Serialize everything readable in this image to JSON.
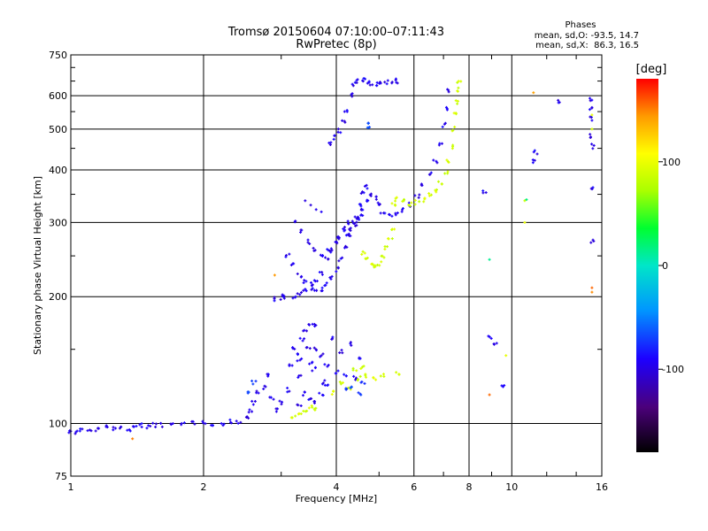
{
  "chart_data": {
    "type": "scatter",
    "title": "Tromsø 20150604 07:10:00–07:11:43",
    "subtitle": "RwPretec (8p)",
    "xlabel": "Frequency [MHz]",
    "ylabel": "Stationary phase Virtual Height [km]",
    "x_scale": "log",
    "y_scale": "log",
    "xlim": [
      1,
      16
    ],
    "ylim": [
      75,
      750
    ],
    "x_ticks": [
      1,
      2,
      4,
      6,
      8,
      10,
      16
    ],
    "x_tick_labels": [
      "1",
      "2",
      "4",
      "6",
      "8",
      "10",
      "16"
    ],
    "y_ticks": [
      75,
      100,
      200,
      300,
      400,
      500,
      600,
      750
    ],
    "y_tick_labels": [
      "75",
      "100",
      "200",
      "300",
      "400",
      "500",
      "600",
      "750"
    ],
    "grid": true,
    "phase_stats": {
      "header": "Phases",
      "o_line": "mean, sd,O: -93.5, 14.7",
      "x_line": "mean, sd,X:  86.3, 16.5"
    },
    "colorbar": {
      "label": "[deg]",
      "range": [
        -180,
        180
      ],
      "ticks": [
        -100,
        0,
        100
      ],
      "tick_labels": [
        "-100",
        "0",
        "100"
      ]
    },
    "traces": [
      {
        "phase": -95,
        "points": [
          [
            1.0,
            96
          ],
          [
            1.03,
            95
          ],
          [
            1.06,
            97
          ],
          [
            1.1,
            96
          ],
          [
            1.15,
            97
          ],
          [
            1.2,
            98
          ],
          [
            1.25,
            97
          ],
          [
            1.3,
            98
          ],
          [
            1.35,
            97
          ],
          [
            1.4,
            98
          ],
          [
            1.45,
            99
          ],
          [
            1.5,
            98
          ],
          [
            1.55,
            99
          ],
          [
            1.6,
            99
          ],
          [
            1.7,
            99
          ],
          [
            1.8,
            100
          ],
          [
            1.9,
            100
          ],
          [
            2.0,
            100
          ],
          [
            2.1,
            100
          ],
          [
            2.2,
            100
          ],
          [
            2.3,
            101
          ],
          [
            2.4,
            101
          ],
          [
            2.5,
            103
          ],
          [
            2.55,
            107
          ],
          [
            2.6,
            112
          ],
          [
            2.65,
            118
          ]
        ]
      },
      {
        "phase": -95,
        "points": [
          [
            3.1,
            250
          ],
          [
            3.2,
            238
          ],
          [
            3.3,
            225
          ],
          [
            3.4,
            218
          ],
          [
            3.5,
            214
          ],
          [
            3.6,
            218
          ],
          [
            3.7,
            228
          ],
          [
            3.8,
            245
          ],
          [
            3.9,
            258
          ],
          [
            4.0,
            268
          ],
          [
            4.1,
            275
          ],
          [
            4.2,
            283
          ],
          [
            4.3,
            290
          ],
          [
            4.4,
            296
          ],
          [
            4.5,
            305
          ],
          [
            4.6,
            320
          ],
          [
            4.7,
            337
          ],
          [
            4.8,
            350
          ],
          [
            4.9,
            342
          ],
          [
            5.0,
            330
          ],
          [
            5.1,
            318
          ],
          [
            5.3,
            312
          ],
          [
            5.5,
            315
          ],
          [
            5.7,
            322
          ],
          [
            5.9,
            330
          ],
          [
            6.1,
            345
          ],
          [
            6.3,
            368
          ],
          [
            6.5,
            392
          ],
          [
            6.7,
            420
          ],
          [
            6.9,
            460
          ],
          [
            7.0,
            510
          ],
          [
            7.1,
            560
          ],
          [
            7.15,
            620
          ]
        ]
      },
      {
        "phase": -95,
        "points": [
          [
            3.25,
            300
          ],
          [
            3.35,
            285
          ],
          [
            3.45,
            270
          ],
          [
            3.55,
            258
          ],
          [
            3.7,
            252
          ],
          [
            3.85,
            260
          ],
          [
            4.0,
            275
          ],
          [
            4.15,
            290
          ],
          [
            4.3,
            300
          ],
          [
            4.45,
            308
          ],
          [
            4.6,
            310
          ]
        ]
      },
      {
        "phase": -95,
        "points": [
          [
            3.2,
            198
          ],
          [
            3.3,
            203
          ],
          [
            3.4,
            208
          ],
          [
            3.5,
            210
          ],
          [
            3.6,
            206
          ],
          [
            3.7,
            208
          ],
          [
            3.8,
            214
          ],
          [
            3.9,
            222
          ],
          [
            4.0,
            232
          ],
          [
            4.1,
            245
          ],
          [
            4.2,
            262
          ],
          [
            4.3,
            280
          ],
          [
            4.4,
            300
          ],
          [
            4.5,
            328
          ],
          [
            4.6,
            355
          ],
          [
            4.7,
            365
          ]
        ]
      },
      {
        "phase": -95,
        "points": [
          [
            3.4,
            338
          ],
          [
            3.5,
            330
          ],
          [
            3.6,
            322
          ],
          [
            3.7,
            318
          ]
        ]
      },
      {
        "phase": -95,
        "points": [
          [
            3.85,
            460
          ],
          [
            3.95,
            478
          ],
          [
            4.05,
            495
          ],
          [
            4.15,
            520
          ],
          [
            4.2,
            555
          ],
          [
            4.3,
            600
          ],
          [
            4.4,
            640
          ],
          [
            4.5,
            650
          ],
          [
            4.6,
            655
          ],
          [
            4.7,
            650
          ],
          [
            4.8,
            640
          ],
          [
            4.9,
            638
          ],
          [
            5.0,
            642
          ],
          [
            5.2,
            645
          ],
          [
            5.4,
            648
          ],
          [
            5.5,
            650
          ]
        ]
      },
      {
        "phase": -95,
        "points": [
          [
            3.1,
            120
          ],
          [
            3.15,
            138
          ],
          [
            3.25,
            145
          ],
          [
            3.3,
            130
          ],
          [
            3.35,
            158
          ],
          [
            3.4,
            165
          ],
          [
            3.45,
            150
          ],
          [
            3.5,
            140
          ],
          [
            3.55,
            135
          ],
          [
            3.6,
            150
          ],
          [
            3.7,
            145
          ],
          [
            3.75,
            125
          ],
          [
            3.8,
            138
          ],
          [
            3.9,
            160
          ],
          [
            4.0,
            132
          ],
          [
            4.1,
            148
          ],
          [
            4.2,
            130
          ],
          [
            4.3,
            155
          ],
          [
            4.4,
            128
          ],
          [
            4.5,
            142
          ],
          [
            3.3,
            110
          ],
          [
            3.4,
            118
          ],
          [
            3.5,
            115
          ],
          [
            3.6,
            112
          ],
          [
            3.7,
            118
          ],
          [
            3.8,
            122
          ],
          [
            3.5,
            170
          ],
          [
            3.6,
            172
          ],
          [
            3.2,
            150
          ],
          [
            3.3,
            142
          ]
        ]
      },
      {
        "phase": -95,
        "points": [
          [
            2.9,
            197
          ],
          [
            3.0,
            199
          ],
          [
            3.05,
            200
          ],
          [
            2.75,
            122
          ],
          [
            2.8,
            130
          ],
          [
            2.85,
            115
          ],
          [
            2.95,
            108
          ],
          [
            3.0,
            112
          ]
        ]
      },
      {
        "phase": 90,
        "points": [
          [
            4.6,
            255
          ],
          [
            4.7,
            245
          ],
          [
            4.8,
            238
          ],
          [
            4.9,
            235
          ],
          [
            5.0,
            240
          ],
          [
            5.1,
            250
          ],
          [
            5.2,
            262
          ],
          [
            5.3,
            275
          ],
          [
            5.4,
            290
          ]
        ]
      },
      {
        "phase": 90,
        "points": [
          [
            5.4,
            330
          ],
          [
            5.5,
            340
          ],
          [
            5.7,
            338
          ],
          [
            5.9,
            332
          ],
          [
            6.1,
            335
          ],
          [
            6.3,
            340
          ],
          [
            6.5,
            348
          ],
          [
            6.7,
            358
          ],
          [
            6.9,
            372
          ],
          [
            7.1,
            395
          ],
          [
            7.2,
            420
          ],
          [
            7.3,
            455
          ],
          [
            7.4,
            500
          ],
          [
            7.45,
            540
          ],
          [
            7.5,
            580
          ],
          [
            7.55,
            620
          ],
          [
            7.6,
            650
          ]
        ]
      },
      {
        "phase": 90,
        "points": [
          [
            3.2,
            103
          ],
          [
            3.3,
            106
          ],
          [
            3.4,
            108
          ],
          [
            3.5,
            110
          ],
          [
            3.6,
            108
          ],
          [
            3.9,
            118
          ],
          [
            4.1,
            125
          ],
          [
            4.3,
            122
          ],
          [
            4.5,
            128
          ],
          [
            4.7,
            130
          ],
          [
            4.9,
            128
          ],
          [
            5.1,
            130
          ],
          [
            5.5,
            132
          ],
          [
            4.4,
            135
          ],
          [
            4.6,
            136
          ]
        ]
      },
      {
        "phase": -70,
        "points": [
          [
            4.2,
            120
          ],
          [
            4.35,
            122
          ],
          [
            4.5,
            118
          ],
          [
            4.6,
            125
          ],
          [
            2.55,
            118
          ],
          [
            2.6,
            125
          ],
          [
            4.75,
            505
          ],
          [
            4.7,
            520
          ]
        ]
      },
      {
        "phase": -95,
        "points": [
          [
            15.2,
            590
          ],
          [
            15.2,
            560
          ],
          [
            15.2,
            530
          ],
          [
            15.2,
            480
          ],
          [
            15.2,
            455
          ],
          [
            15.2,
            360
          ],
          [
            15.2,
            272
          ],
          [
            11.3,
            440
          ],
          [
            11.3,
            420
          ],
          [
            12.8,
            580
          ],
          [
            8.7,
            355
          ],
          [
            8.9,
            160
          ],
          [
            9.6,
            122
          ],
          [
            9.2,
            155
          ]
        ]
      },
      {
        "phase": 90,
        "points": [
          [
            15.2,
            540
          ],
          [
            15.2,
            500
          ],
          [
            10.7,
            338
          ],
          [
            10.7,
            300
          ],
          [
            9.7,
            145
          ]
        ]
      },
      {
        "phase": 150,
        "points": [
          [
            15.2,
            205
          ],
          [
            15.2,
            210
          ],
          [
            11.2,
            610
          ],
          [
            2.9,
            225
          ],
          [
            8.9,
            117
          ],
          [
            1.38,
            92
          ]
        ]
      },
      {
        "phase": 20,
        "points": [
          [
            8.9,
            245
          ],
          [
            10.8,
            340
          ]
        ]
      }
    ]
  }
}
